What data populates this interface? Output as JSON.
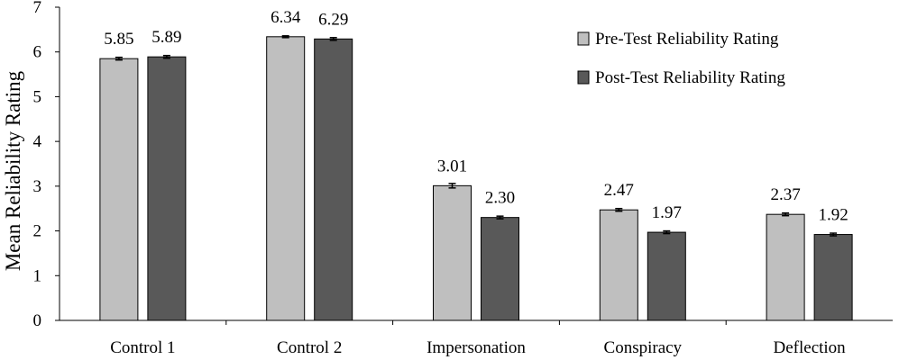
{
  "chart_data": {
    "type": "bar",
    "title": "",
    "xlabel": "",
    "ylabel": "Mean Reliability Rating",
    "ylim": [
      0,
      7
    ],
    "yticks": [
      0,
      1,
      2,
      3,
      4,
      5,
      6,
      7
    ],
    "grid": false,
    "legend_position": "top-right",
    "categories": [
      "Control 1",
      "Control 2",
      "Impersonation",
      "Conspiracy",
      "Deflection"
    ],
    "series": [
      {
        "name": "Pre-Test Reliability Rating",
        "color": "#bfbfbf",
        "values": [
          5.85,
          6.34,
          3.01,
          2.47,
          2.37
        ],
        "labels": [
          "5.85",
          "6.34",
          "3.01",
          "2.47",
          "2.37"
        ],
        "error": [
          0.03,
          0.02,
          0.05,
          0.03,
          0.03
        ]
      },
      {
        "name": "Post-Test Reliability Rating",
        "color": "#595959",
        "values": [
          5.89,
          6.29,
          2.3,
          1.97,
          1.92
        ],
        "labels": [
          "5.89",
          "6.29",
          "2.30",
          "1.97",
          "1.92"
        ],
        "error": [
          0.03,
          0.03,
          0.03,
          0.03,
          0.03
        ]
      }
    ]
  }
}
